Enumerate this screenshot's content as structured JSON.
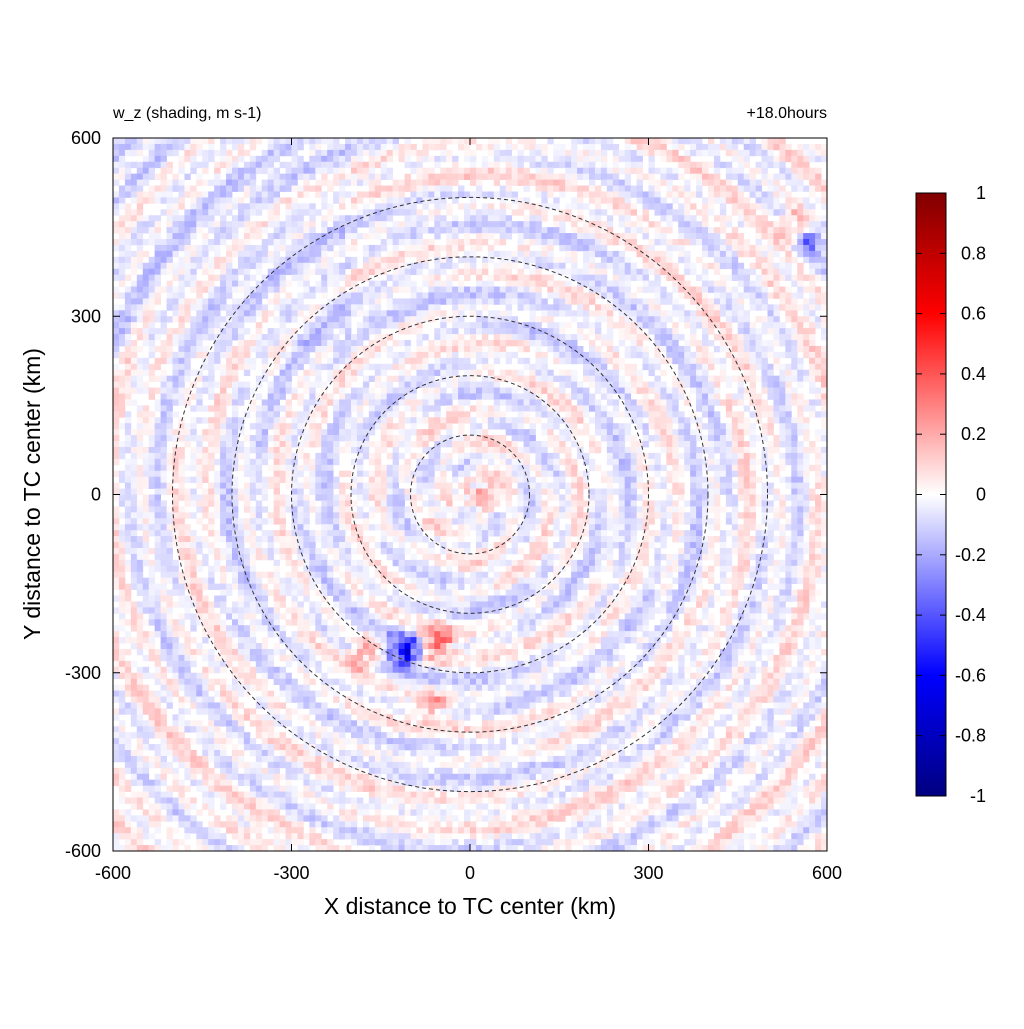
{
  "chart_data": {
    "type": "heatmap",
    "title_left": "w_z (shading, m s-1)",
    "title_right": "+18.0hours",
    "xlabel": "X distance to TC center (km)",
    "ylabel": "Y distance to TC center (km)",
    "xlim": [
      -600,
      600
    ],
    "ylim": [
      -600,
      600
    ],
    "xticks": [
      "-600",
      "-300",
      "0",
      "300",
      "600"
    ],
    "yticks": [
      "-600",
      "-300",
      "0",
      "300",
      "600"
    ],
    "xtick_values": [
      -600,
      -300,
      0,
      300,
      600
    ],
    "ytick_values": [
      -600,
      -300,
      0,
      300,
      600
    ],
    "rings_km": [
      100,
      200,
      300,
      400,
      500
    ],
    "ring_style": "dashed",
    "colorbar": {
      "range": [
        -1,
        1
      ],
      "tick_values": [
        1,
        0.8,
        0.6,
        0.4,
        0.2,
        0,
        -0.2,
        -0.4,
        -0.6,
        -0.8,
        -1
      ],
      "tick_labels": [
        "1",
        "0.8",
        "0.6",
        "0.4",
        "0.2",
        "0",
        "-0.2",
        "-0.4",
        "-0.6",
        "-0.8",
        "-1"
      ],
      "colors": {
        "max": "#800000",
        "high": "#ff0000",
        "mid": "#ffffff",
        "low": "#0000ff",
        "min": "#000080"
      }
    },
    "features": [
      {
        "x": -110,
        "y": -260,
        "value": -0.6
      },
      {
        "x": -55,
        "y": -250,
        "value": 0.4
      },
      {
        "x": -180,
        "y": -270,
        "value": 0.3
      },
      {
        "x": 570,
        "y": 430,
        "value": -0.3
      },
      {
        "x": 550,
        "y": 450,
        "value": 0.3
      },
      {
        "x": -60,
        "y": -350,
        "value": 0.2
      },
      {
        "x": 20,
        "y": 0,
        "value": 0.15
      }
    ]
  }
}
